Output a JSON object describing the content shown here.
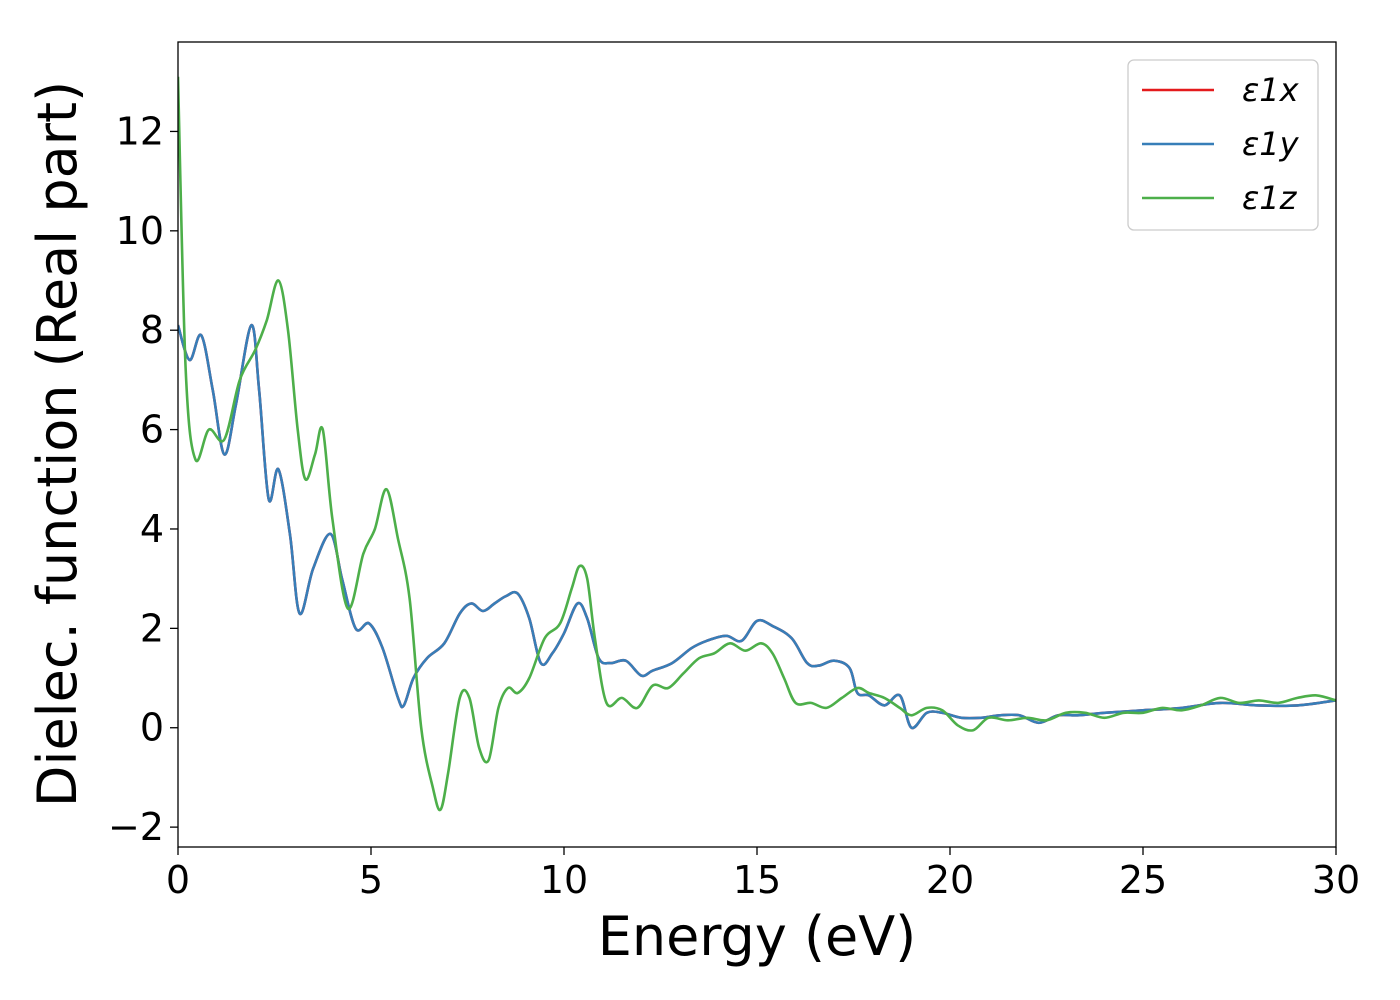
{
  "chart_data": {
    "type": "line",
    "title": "",
    "xlabel": "Energy (eV)",
    "ylabel": "Dielec. function (Real part)",
    "xlim": [
      0,
      30
    ],
    "ylim": [
      -2.4,
      13.8
    ],
    "xticks": [
      0,
      5,
      10,
      15,
      20,
      25,
      30
    ],
    "xtick_labels": [
      "0",
      "5",
      "10",
      "15",
      "20",
      "25",
      "30"
    ],
    "yticks": [
      -2,
      0,
      2,
      4,
      6,
      8,
      10,
      12
    ],
    "ytick_labels": [
      "−2",
      "0",
      "2",
      "4",
      "6",
      "8",
      "10",
      "12"
    ],
    "grid": false,
    "legend_position": "top-right",
    "series": [
      {
        "name": "ε1x",
        "color": "#e41a1c",
        "x": [
          0,
          0.3,
          0.6,
          0.9,
          1.2,
          1.5,
          1.9,
          2.1,
          2.35,
          2.6,
          2.9,
          3.15,
          3.5,
          3.95,
          4.25,
          4.6,
          4.95,
          5.3,
          5.7,
          5.85,
          6.1,
          6.45,
          6.9,
          7.3,
          7.6,
          7.9,
          8.2,
          8.5,
          8.8,
          9.1,
          9.4,
          9.7,
          10.0,
          10.35,
          10.6,
          10.9,
          11.2,
          11.6,
          12.0,
          12.3,
          12.8,
          13.3,
          13.7,
          14.2,
          14.6,
          15.0,
          15.4,
          15.9,
          16.3,
          16.6,
          17.0,
          17.4,
          17.6,
          17.9,
          18.3,
          18.7,
          19.0,
          19.4,
          19.8,
          20.3,
          20.8,
          21.3,
          21.8,
          22.3,
          22.8,
          23.3,
          24.0,
          25.0,
          26.0,
          27.0,
          28.0,
          29.0,
          30.0
        ],
        "values": [
          8.1,
          7.4,
          7.9,
          6.8,
          5.5,
          6.5,
          8.1,
          6.8,
          4.6,
          5.2,
          3.9,
          2.3,
          3.2,
          3.9,
          3.0,
          2.0,
          2.1,
          1.6,
          0.6,
          0.45,
          1.0,
          1.4,
          1.7,
          2.3,
          2.5,
          2.35,
          2.5,
          2.65,
          2.7,
          2.2,
          1.3,
          1.5,
          1.9,
          2.5,
          2.2,
          1.4,
          1.3,
          1.35,
          1.05,
          1.15,
          1.3,
          1.6,
          1.75,
          1.85,
          1.75,
          2.15,
          2.05,
          1.8,
          1.3,
          1.25,
          1.35,
          1.2,
          0.7,
          0.65,
          0.45,
          0.65,
          0.0,
          0.3,
          0.3,
          0.2,
          0.2,
          0.25,
          0.25,
          0.1,
          0.25,
          0.25,
          0.3,
          0.35,
          0.4,
          0.5,
          0.45,
          0.45,
          0.55
        ]
      },
      {
        "name": "ε1y",
        "color": "#377eb8",
        "x": [
          0,
          0.3,
          0.6,
          0.9,
          1.2,
          1.5,
          1.9,
          2.1,
          2.35,
          2.6,
          2.9,
          3.15,
          3.5,
          3.95,
          4.25,
          4.6,
          4.95,
          5.3,
          5.7,
          5.85,
          6.1,
          6.45,
          6.9,
          7.3,
          7.6,
          7.9,
          8.2,
          8.5,
          8.8,
          9.1,
          9.4,
          9.7,
          10.0,
          10.35,
          10.6,
          10.9,
          11.2,
          11.6,
          12.0,
          12.3,
          12.8,
          13.3,
          13.7,
          14.2,
          14.6,
          15.0,
          15.4,
          15.9,
          16.3,
          16.6,
          17.0,
          17.4,
          17.6,
          17.9,
          18.3,
          18.7,
          19.0,
          19.4,
          19.8,
          20.3,
          20.8,
          21.3,
          21.8,
          22.3,
          22.8,
          23.3,
          24.0,
          25.0,
          26.0,
          27.0,
          28.0,
          29.0,
          30.0
        ],
        "values": [
          8.1,
          7.4,
          7.9,
          6.8,
          5.5,
          6.5,
          8.1,
          6.8,
          4.6,
          5.2,
          3.9,
          2.3,
          3.2,
          3.9,
          3.0,
          2.0,
          2.1,
          1.6,
          0.6,
          0.45,
          1.0,
          1.4,
          1.7,
          2.3,
          2.5,
          2.35,
          2.5,
          2.65,
          2.7,
          2.2,
          1.3,
          1.5,
          1.9,
          2.5,
          2.2,
          1.4,
          1.3,
          1.35,
          1.05,
          1.15,
          1.3,
          1.6,
          1.75,
          1.85,
          1.75,
          2.15,
          2.05,
          1.8,
          1.3,
          1.25,
          1.35,
          1.2,
          0.7,
          0.65,
          0.45,
          0.65,
          0.0,
          0.3,
          0.3,
          0.2,
          0.2,
          0.25,
          0.25,
          0.1,
          0.25,
          0.25,
          0.3,
          0.35,
          0.4,
          0.5,
          0.45,
          0.45,
          0.55
        ]
      },
      {
        "name": "ε1z",
        "color": "#4daf4a",
        "x": [
          0,
          0.2,
          0.45,
          0.8,
          1.2,
          1.6,
          2.0,
          2.3,
          2.6,
          2.85,
          3.1,
          3.3,
          3.55,
          3.75,
          4.0,
          4.4,
          4.8,
          5.1,
          5.4,
          5.7,
          6.0,
          6.3,
          6.6,
          6.8,
          7.0,
          7.3,
          7.55,
          7.8,
          8.05,
          8.3,
          8.55,
          8.8,
          9.1,
          9.5,
          9.9,
          10.2,
          10.4,
          10.6,
          10.8,
          11.1,
          11.5,
          11.9,
          12.3,
          12.7,
          13.1,
          13.5,
          13.9,
          14.3,
          14.7,
          15.1,
          15.4,
          15.7,
          16.0,
          16.4,
          16.8,
          17.2,
          17.6,
          17.9,
          18.3,
          18.7,
          19.0,
          19.4,
          19.8,
          20.2,
          20.6,
          21.0,
          21.5,
          22.0,
          22.5,
          23.0,
          23.5,
          24.0,
          24.5,
          25.0,
          25.5,
          26.0,
          26.5,
          27.0,
          27.5,
          28.0,
          28.5,
          29.0,
          29.5,
          30.0
        ],
        "values": [
          13.1,
          7.2,
          5.4,
          6.0,
          5.8,
          7.0,
          7.6,
          8.2,
          9.0,
          8.0,
          6.0,
          5.0,
          5.5,
          6.0,
          4.2,
          2.4,
          3.5,
          4.0,
          4.8,
          3.8,
          2.6,
          0.0,
          -1.2,
          -1.65,
          -0.9,
          0.6,
          0.6,
          -0.4,
          -0.65,
          0.4,
          0.8,
          0.7,
          1.0,
          1.8,
          2.1,
          2.8,
          3.25,
          3.0,
          1.8,
          0.5,
          0.6,
          0.4,
          0.85,
          0.8,
          1.1,
          1.4,
          1.5,
          1.7,
          1.55,
          1.7,
          1.5,
          1.0,
          0.5,
          0.5,
          0.4,
          0.6,
          0.8,
          0.7,
          0.6,
          0.4,
          0.25,
          0.4,
          0.35,
          0.05,
          -0.05,
          0.2,
          0.15,
          0.2,
          0.15,
          0.3,
          0.3,
          0.2,
          0.3,
          0.3,
          0.4,
          0.35,
          0.45,
          0.6,
          0.5,
          0.55,
          0.5,
          0.6,
          0.65,
          0.55
        ]
      }
    ]
  }
}
